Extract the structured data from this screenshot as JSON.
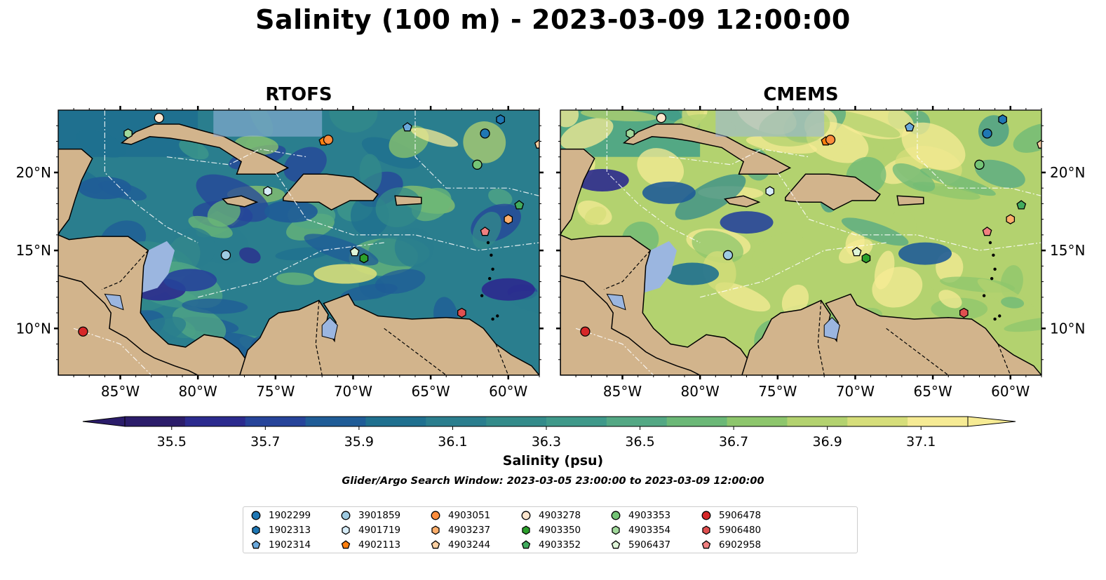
{
  "title": "Salinity (100 m) - 2023-03-09 12:00:00",
  "panels": [
    {
      "id": "rtofs",
      "title": "RTOFS",
      "character": "fresh"
    },
    {
      "id": "cmems",
      "title": "CMEMS",
      "character": "salty"
    }
  ],
  "map": {
    "extent": {
      "lon_min": -89,
      "lon_max": -58,
      "lat_min": 7,
      "lat_max": 24
    },
    "lon_ticks": [
      "85°W",
      "80°W",
      "75°W",
      "70°W",
      "65°W",
      "60°W"
    ],
    "lon_tick_values": [
      -85,
      -80,
      -75,
      -70,
      -65,
      -60
    ],
    "lat_ticks": [
      "20°N",
      "15°N",
      "10°N"
    ],
    "lat_tick_values": [
      20,
      15,
      10
    ],
    "colors": {
      "land": "#d2b48c",
      "shelf": "#9bb6e0",
      "pacific": "#2b1a6a"
    }
  },
  "colorbar": {
    "label": "Salinity (psu)",
    "min": 35.4,
    "max": 37.2,
    "ticks": [
      "35.5",
      "35.7",
      "35.9",
      "36.1",
      "36.3",
      "36.5",
      "36.7",
      "36.9",
      "37.1"
    ],
    "tick_values": [
      35.5,
      35.7,
      35.9,
      36.1,
      36.3,
      36.5,
      36.7,
      36.9,
      37.1
    ],
    "colors": [
      "#2b1c6a",
      "#2b2a8e",
      "#26449a",
      "#1f5c97",
      "#1f708f",
      "#2a7e8e",
      "#338b8a",
      "#3f998a",
      "#53a884",
      "#6bb877",
      "#8dc66c",
      "#b3d26f",
      "#d6de7a",
      "#f6eb94"
    ]
  },
  "search_window": "Glider/Argo Search Window: 2023-03-05 23:00:00 to 2023-03-09 12:00:00",
  "platforms": [
    {
      "id": "1902299",
      "marker": "circle",
      "color": "#1f77b4",
      "lon": -61.5,
      "lat": 22.5
    },
    {
      "id": "1902313",
      "marker": "hexagon",
      "color": "#1f77b4",
      "lon": -60.5,
      "lat": 23.4
    },
    {
      "id": "1902314",
      "marker": "pentagon",
      "color": "#6aa8db",
      "lon": -66.5,
      "lat": 22.9
    },
    {
      "id": "3901859",
      "marker": "circle",
      "color": "#9ecae1",
      "lon": -78.2,
      "lat": 14.7
    },
    {
      "id": "4901719",
      "marker": "hexagon",
      "color": "#d6ecf8",
      "lon": -75.5,
      "lat": 18.8
    },
    {
      "id": "4902113",
      "marker": "pentagon",
      "color": "#ff7f0e",
      "lon": -71.9,
      "lat": 22.0
    },
    {
      "id": "4903051",
      "marker": "circle",
      "color": "#fd8d3c",
      "lon": -71.6,
      "lat": 22.1
    },
    {
      "id": "4903237",
      "marker": "hexagon",
      "color": "#fdae6b",
      "lon": -60.0,
      "lat": 17.0
    },
    {
      "id": "4903244",
      "marker": "pentagon",
      "color": "#fdd0a2",
      "lon": -58.0,
      "lat": 21.8
    },
    {
      "id": "4903278",
      "marker": "circle",
      "color": "#fee6ce",
      "lon": -82.5,
      "lat": 23.5
    },
    {
      "id": "4903350",
      "marker": "hexagon",
      "color": "#2ca02c",
      "lon": -69.3,
      "lat": 14.5
    },
    {
      "id": "4903352",
      "marker": "pentagon",
      "color": "#41ab5d",
      "lon": -59.3,
      "lat": 17.9
    },
    {
      "id": "4903353",
      "marker": "circle",
      "color": "#74c476",
      "lon": -62.0,
      "lat": 20.5
    },
    {
      "id": "4903354",
      "marker": "hexagon",
      "color": "#a1d99b",
      "lon": -84.5,
      "lat": 22.5
    },
    {
      "id": "5906437",
      "marker": "pentagon",
      "color": "#dff5d8",
      "lon": -69.9,
      "lat": 14.9
    },
    {
      "id": "5906478",
      "marker": "circle",
      "color": "#d62728",
      "lon": -87.4,
      "lat": 9.8
    },
    {
      "id": "5906480",
      "marker": "hexagon",
      "color": "#e05050",
      "lon": -63.0,
      "lat": 11.0
    },
    {
      "id": "6902958",
      "marker": "pentagon",
      "color": "#f08080",
      "lon": -61.5,
      "lat": 16.2
    }
  ]
}
